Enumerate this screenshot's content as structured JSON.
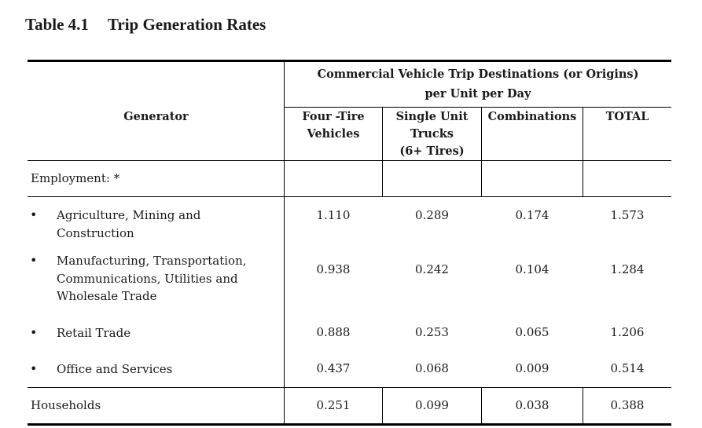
{
  "table": {
    "number": "Table 4.1",
    "title": "Trip Generation Rates",
    "headers": {
      "generator": "Generator",
      "group": [
        "Commercial Vehicle Trip Destinations (or Origins)",
        "per Unit per Day"
      ],
      "four_tire": [
        "Four -Tire",
        "Vehicles"
      ],
      "single_unit": [
        "Single Unit",
        "Trucks",
        "(6+ Tires)"
      ],
      "combinations": "Combinations",
      "total": "TOTAL"
    },
    "section_employment": "Employment: *",
    "bullet": "•",
    "rows": [
      {
        "label": [
          "Agriculture, Mining and",
          "Construction"
        ],
        "values": [
          "1.110",
          "0.289",
          "0.174",
          "1.573"
        ]
      },
      {
        "label": [
          "Manufacturing, Transportation,",
          "Communications, Utilities and",
          "Wholesale Trade"
        ],
        "values": [
          "0.938",
          "0.242",
          "0.104",
          "1.284"
        ]
      },
      {
        "label": [
          "Retail Trade"
        ],
        "values": [
          "0.888",
          "0.253",
          "0.065",
          "1.206"
        ]
      },
      {
        "label": [
          "Office and Services"
        ],
        "values": [
          "0.437",
          "0.068",
          "0.009",
          "0.514"
        ]
      }
    ],
    "households": {
      "label": "Households",
      "values": [
        "0.251",
        "0.099",
        "0.038",
        "0.388"
      ]
    }
  }
}
